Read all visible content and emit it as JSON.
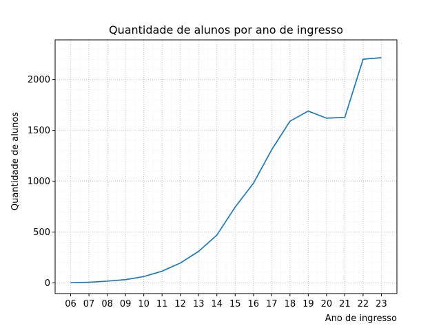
{
  "chart_data": {
    "type": "line",
    "title": "Quantidade de alunos por ano de ingresso",
    "xlabel": "Ano de ingresso",
    "ylabel": "Quantidade de alunos",
    "categories": [
      "06",
      "07",
      "08",
      "09",
      "10",
      "11",
      "12",
      "13",
      "14",
      "15",
      "16",
      "17",
      "18",
      "19",
      "20",
      "21",
      "22",
      "23"
    ],
    "series": [
      {
        "values": [
          2,
          6,
          17,
          32,
          62,
          115,
          195,
          310,
          470,
          745,
          980,
          1310,
          1590,
          1690,
          1620,
          1628,
          2200,
          2215
        ],
        "color": "#1f77b4"
      }
    ],
    "ylim": [
      -105,
      2390
    ],
    "yticks": [
      0,
      500,
      1000,
      1500,
      2000
    ],
    "grid": true,
    "minor_grid": true,
    "legend": "none"
  }
}
